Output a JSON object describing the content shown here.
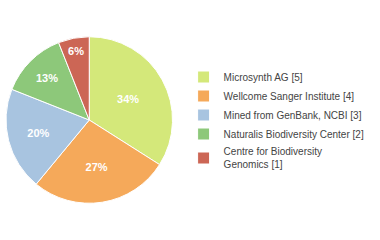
{
  "chart_data": {
    "type": "pie",
    "categories": [
      "Microsynth AG [5]",
      "Wellcome Sanger Institute [4]",
      "Mined from GenBank, NCBI [3]",
      "Naturalis Biodiversity Center [2]",
      "Centre for Biodiversity\nGenomics [1]"
    ],
    "values": [
      34,
      27,
      20,
      13,
      6
    ],
    "value_labels": [
      "34%",
      "27%",
      "20%",
      "13%",
      "6%"
    ],
    "colors": [
      "#d4e87a",
      "#f5a95a",
      "#a8c4e0",
      "#8dc87a",
      "#cc6655"
    ],
    "data_labels": true,
    "legend": "right"
  }
}
